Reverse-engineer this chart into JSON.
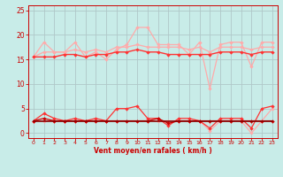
{
  "x": [
    0,
    1,
    2,
    3,
    4,
    5,
    6,
    7,
    8,
    9,
    10,
    11,
    12,
    13,
    14,
    15,
    16,
    17,
    18,
    19,
    20,
    21,
    22,
    23
  ],
  "upper_light1": [
    15.5,
    18.5,
    16.5,
    16.5,
    18.5,
    15.5,
    16.5,
    15,
    17,
    18,
    21.5,
    21.5,
    18,
    18,
    18,
    16,
    18.5,
    9,
    18,
    18.5,
    18.5,
    13.5,
    18.5,
    18.5
  ],
  "upper_light2": [
    15.5,
    16.5,
    16.5,
    16.5,
    17,
    16.5,
    17,
    16.5,
    17.5,
    17.5,
    18,
    17.5,
    17.5,
    17.5,
    17.5,
    17,
    17.5,
    16.5,
    17.5,
    17.5,
    17.5,
    17,
    17.5,
    17.5
  ],
  "upper_medium": [
    15.5,
    15.5,
    15.5,
    16,
    16,
    15.5,
    16,
    16,
    16.5,
    16.5,
    17,
    16.5,
    16.5,
    16,
    16,
    16,
    16,
    16,
    16.5,
    16.5,
    16.5,
    16,
    16.5,
    16.5
  ],
  "lower_light": [
    2.5,
    2.5,
    2.5,
    2.5,
    2.5,
    2.5,
    2.5,
    2.5,
    2.5,
    2.5,
    2.5,
    2.5,
    2.5,
    2.5,
    2.5,
    2.5,
    2.5,
    0.5,
    2.5,
    2.5,
    2.5,
    0.0,
    2.5,
    5.0
  ],
  "lower_medium": [
    2.5,
    4.0,
    3.0,
    2.5,
    3.0,
    2.5,
    3.0,
    2.5,
    5.0,
    5.0,
    5.5,
    3.0,
    3.0,
    1.5,
    3.0,
    3.0,
    2.5,
    1.0,
    3.0,
    3.0,
    3.0,
    1.0,
    5.0,
    5.5
  ],
  "lower_dark1": [
    2.5,
    3.0,
    2.5,
    2.5,
    2.5,
    2.5,
    2.5,
    2.5,
    2.5,
    2.5,
    2.5,
    2.5,
    3.0,
    2.0,
    2.5,
    2.5,
    2.5,
    2.5,
    2.5,
    2.5,
    2.5,
    2.5,
    2.5,
    2.5
  ],
  "lower_dark2": [
    2.5,
    2.5,
    2.5,
    2.5,
    2.5,
    2.5,
    2.5,
    2.5,
    2.5,
    2.5,
    2.5,
    2.5,
    2.5,
    2.5,
    2.5,
    2.5,
    2.5,
    2.5,
    2.5,
    2.5,
    2.5,
    2.5,
    2.5,
    2.5
  ],
  "bg_color": "#c8ece8",
  "grid_color": "#b0c8c8",
  "color_light": "#ffaaaa",
  "color_medium": "#ff3333",
  "color_dark": "#cc0000",
  "color_darkest": "#880000",
  "xlabel": "Vent moyen/en rafales ( km/h )",
  "xlim": [
    -0.5,
    23.5
  ],
  "ylim": [
    -1,
    26
  ],
  "yticks": [
    0,
    5,
    10,
    15,
    20,
    25
  ],
  "xticks": [
    0,
    1,
    2,
    3,
    4,
    5,
    6,
    7,
    8,
    9,
    10,
    11,
    12,
    13,
    14,
    15,
    16,
    17,
    18,
    19,
    20,
    21,
    22,
    23
  ]
}
